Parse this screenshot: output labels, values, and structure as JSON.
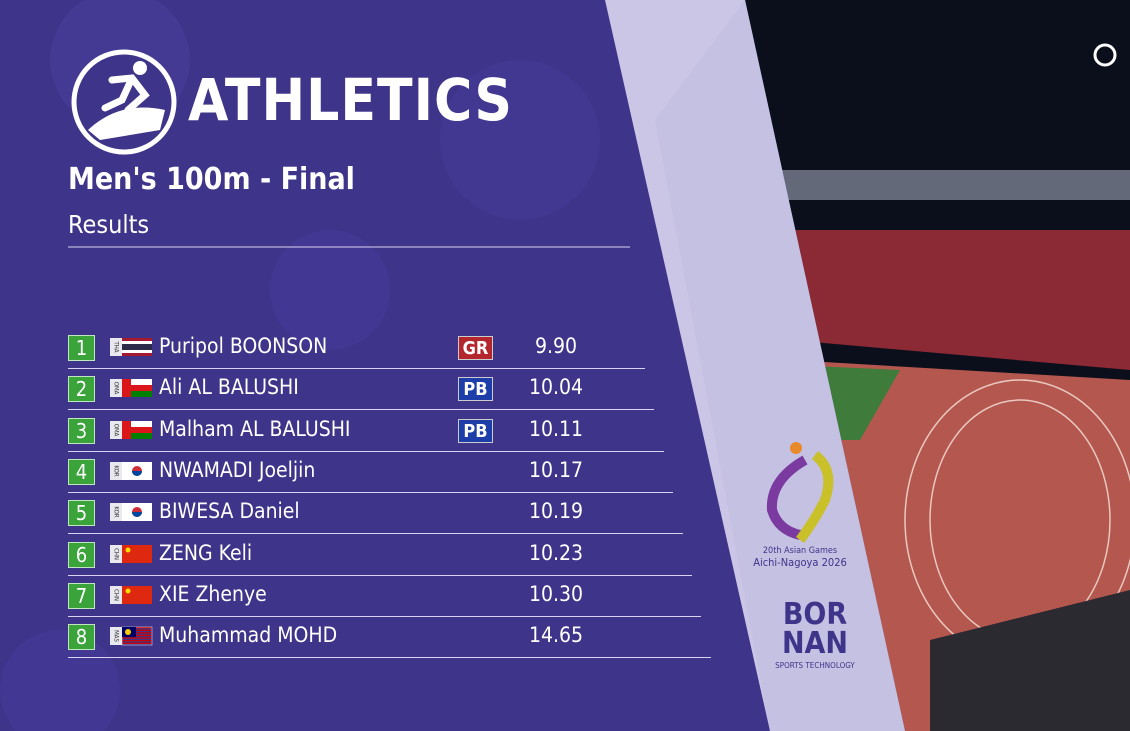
{
  "header": {
    "title": "ATHLETICS",
    "event": "Men's 100m - Final",
    "subtitle": "Results"
  },
  "results": [
    {
      "rank": 1,
      "code": "THA",
      "name": "Puripol BOONSON",
      "badge": "GR",
      "time": "9.90"
    },
    {
      "rank": 2,
      "code": "OMA",
      "name": "Ali AL BALUSHI",
      "badge": "PB",
      "time": "10.04"
    },
    {
      "rank": 3,
      "code": "OMA",
      "name": "Malham AL BALUSHI",
      "badge": "PB",
      "time": "10.11"
    },
    {
      "rank": 4,
      "code": "KOR",
      "name": "NWAMADI Joeljin",
      "time": "10.17"
    },
    {
      "rank": 5,
      "code": "KOR",
      "name": "BIWESA Daniel",
      "time": "10.19"
    },
    {
      "rank": 6,
      "code": "CHN",
      "name": "ZENG Keli",
      "time": "10.23"
    },
    {
      "rank": 7,
      "code": "CHN",
      "name": "XIE Zhenye",
      "time": "10.30"
    },
    {
      "rank": 8,
      "code": "MAS",
      "name": "Muhammad MOHD",
      "time": "14.65"
    }
  ],
  "sponsors": {
    "games_line1": "20th Asian Games",
    "games_line2": "Aichi-Nagoya 2026",
    "bornan_top": "BOR",
    "bornan_bottom": "NAN",
    "bornan_tagline": "SPORTS TECHNOLOGY"
  }
}
